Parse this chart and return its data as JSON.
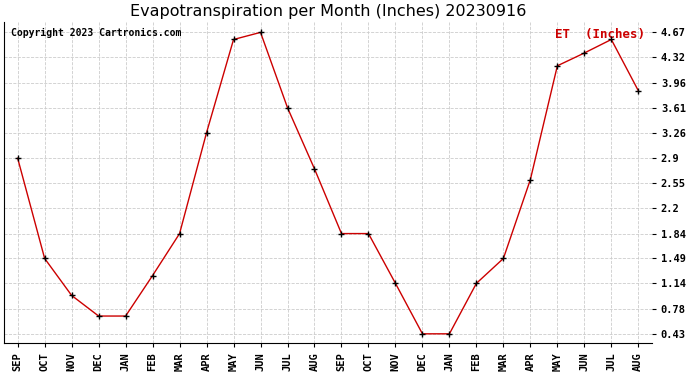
{
  "title": "Evapotranspiration per Month (Inches) 20230916",
  "legend_label": "ET  (Inches)",
  "copyright": "Copyright 2023 Cartronics.com",
  "months": [
    "SEP",
    "OCT",
    "NOV",
    "DEC",
    "JAN",
    "FEB",
    "MAR",
    "APR",
    "MAY",
    "JUN",
    "JUL",
    "AUG",
    "SEP",
    "OCT",
    "NOV",
    "DEC",
    "JAN",
    "FEB",
    "MAR",
    "APR",
    "MAY",
    "JUN",
    "JUL",
    "AUG"
  ],
  "values": [
    2.9,
    1.49,
    0.97,
    0.68,
    0.68,
    1.25,
    1.84,
    3.26,
    4.57,
    4.67,
    3.61,
    2.75,
    1.84,
    1.84,
    1.14,
    0.43,
    0.43,
    1.14,
    1.49,
    2.6,
    4.2,
    4.38,
    4.57,
    3.85
  ],
  "yticks": [
    0.43,
    0.78,
    1.14,
    1.49,
    1.84,
    2.2,
    2.55,
    2.9,
    3.26,
    3.61,
    3.96,
    4.32,
    4.67
  ],
  "line_color": "#cc0000",
  "marker_color": "#000000",
  "grid_color": "#cccccc",
  "bg_color": "#ffffff",
  "title_color": "#000000",
  "legend_color": "#cc0000",
  "copyright_color": "#000000",
  "title_fontsize": 11.5,
  "tick_fontsize": 7.5,
  "legend_fontsize": 9,
  "copyright_fontsize": 7
}
